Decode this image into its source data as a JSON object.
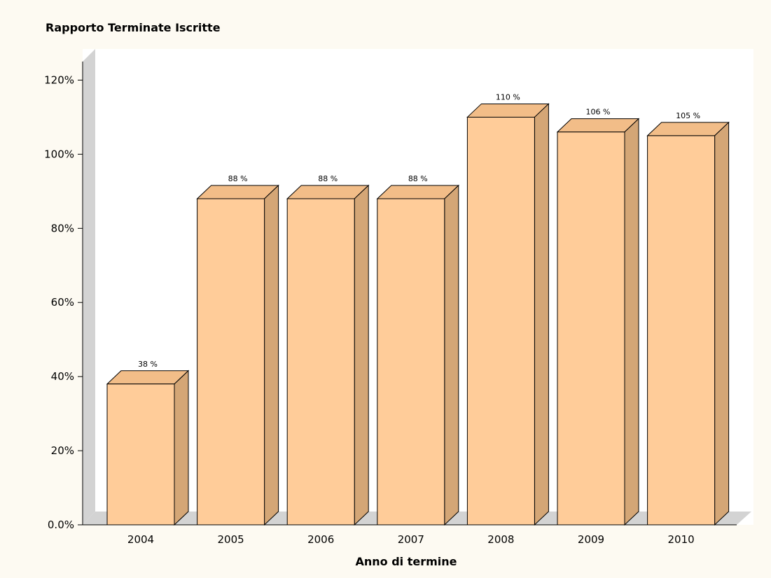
{
  "chart_data": {
    "type": "bar3d",
    "title": "Rapporto Terminate Iscritte",
    "x_label": "Anno di termine",
    "categories": [
      "2004",
      "2005",
      "2006",
      "2007",
      "2008",
      "2009",
      "2010"
    ],
    "values": [
      38,
      88,
      88,
      88,
      110,
      106,
      105
    ],
    "value_labels": [
      "38 %",
      "88 %",
      "88 %",
      "88 %",
      "110 %",
      "106 %",
      "105 %"
    ],
    "color": "#ffcc99",
    "ylim": [
      0,
      125
    ],
    "yticks": [
      {
        "value": 0,
        "label": "0.0%"
      },
      {
        "value": 20,
        "label": "20%"
      },
      {
        "value": 40,
        "label": "40%"
      },
      {
        "value": 60,
        "label": "60%"
      },
      {
        "value": 80,
        "label": "80%"
      },
      {
        "value": 100,
        "label": "100%"
      },
      {
        "value": 120,
        "label": "120%"
      }
    ]
  }
}
